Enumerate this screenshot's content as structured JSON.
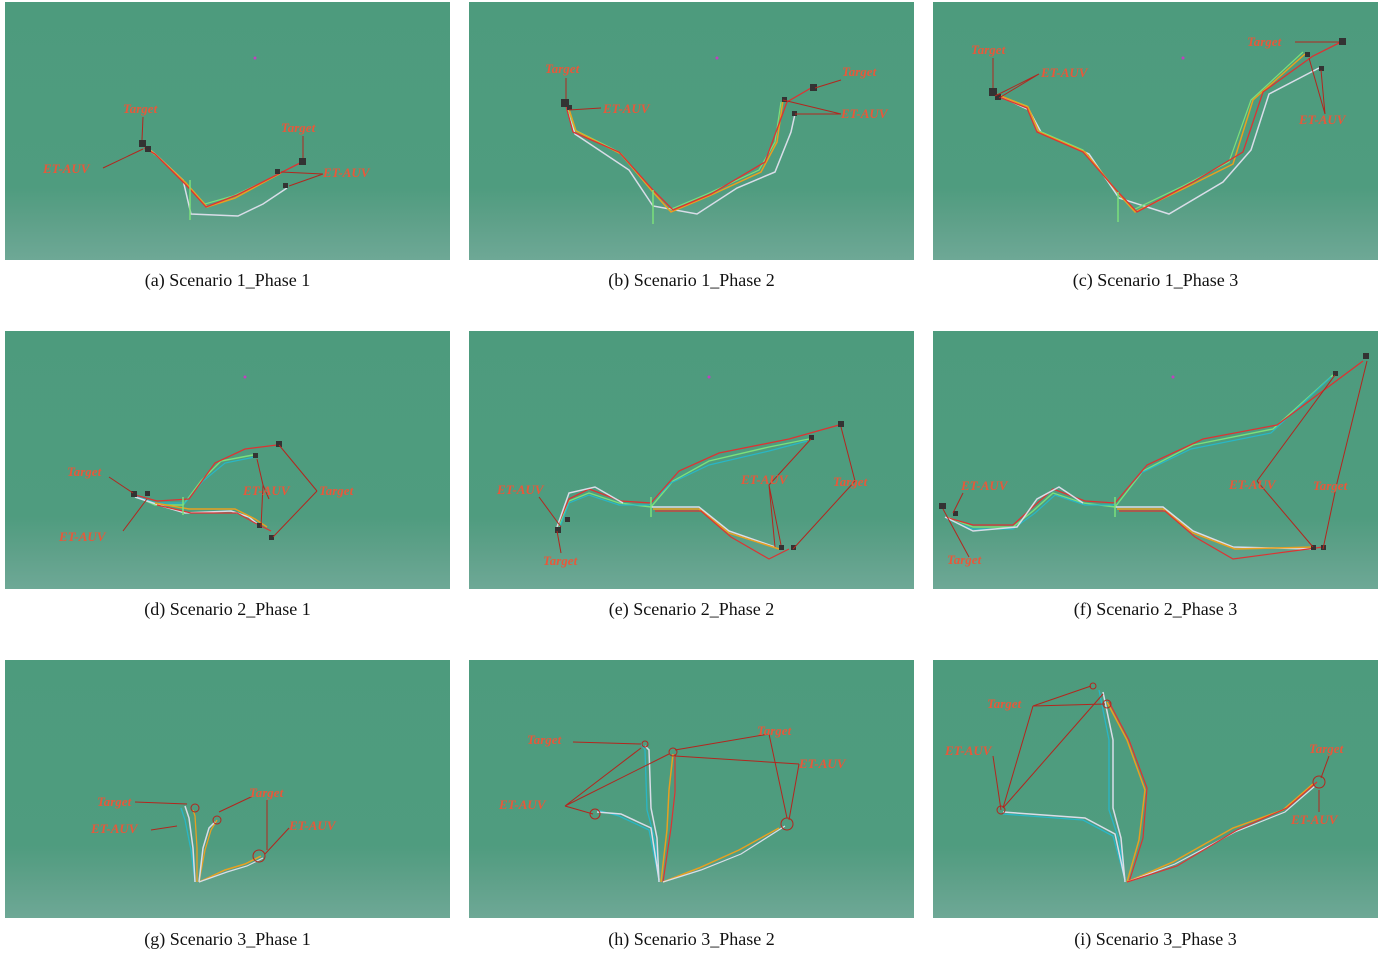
{
  "colors": {
    "water": "#4f9c7f",
    "annotation": "#e8583a",
    "arrow": "#b3261e"
  },
  "panels": [
    {
      "caption": "(a) Scenario 1_Phase 1",
      "labels": [
        "Target",
        "ET-AUV",
        "Target",
        "ET-AUV"
      ]
    },
    {
      "caption": "(b) Scenario 1_Phase 2",
      "labels": [
        "Target",
        "ET-AUV",
        "Target",
        "ET-AUV"
      ]
    },
    {
      "caption": "(c) Scenario 1_Phase 3",
      "labels": [
        "Target",
        "ET-AUV",
        "Target",
        "ET-AUV"
      ]
    },
    {
      "caption": "(d) Scenario 2_Phase 1",
      "labels": [
        "Target",
        "ET-AUV",
        "ET-AUV",
        "Target"
      ]
    },
    {
      "caption": "(e) Scenario 2_Phase 2",
      "labels": [
        "ET-AUV",
        "Target",
        "ET-AUV",
        "Target"
      ]
    },
    {
      "caption": "(f) Scenario 2_Phase 3",
      "labels": [
        "ET-AUV",
        "Target",
        "ET-AUV",
        "Target"
      ]
    },
    {
      "caption": "(g) Scenario 3_Phase 1",
      "labels": [
        "Target",
        "ET-AUV",
        "Target",
        "ET-AUV"
      ]
    },
    {
      "caption": "(h) Scenario 3_Phase 2",
      "labels": [
        "Target",
        "ET-AUV",
        "Target",
        "ET-AUV"
      ]
    },
    {
      "caption": "(i) Scenario 3_Phase 3",
      "labels": [
        "Target",
        "ET-AUV",
        "Target",
        "ET-AUV"
      ]
    }
  ]
}
